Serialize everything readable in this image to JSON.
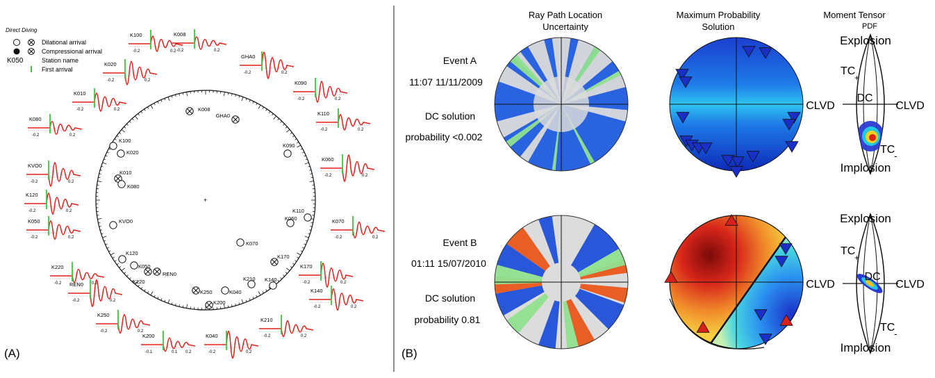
{
  "panel_a": {
    "label": "(A)",
    "legend": {
      "heading": "Direct Diving",
      "dilational": "Dilational arrival",
      "compressional": "Compressional arrival",
      "station_code": "K050",
      "station_name": "Station name",
      "first_arrival": "First arrival"
    },
    "stations": [
      {
        "name": "K008",
        "polarity": "compressional"
      },
      {
        "name": "GHA0",
        "polarity": "compressional"
      },
      {
        "name": "K090",
        "polarity": "dilational"
      },
      {
        "name": "K100",
        "polarity": "dilational"
      },
      {
        "name": "K020",
        "polarity": "dilational"
      },
      {
        "name": "K010",
        "polarity": "compressional"
      },
      {
        "name": "K080",
        "polarity": "dilational"
      },
      {
        "name": "K110",
        "polarity": "dilational"
      },
      {
        "name": "K060",
        "polarity": "dilational"
      },
      {
        "name": "KVO0",
        "polarity": "dilational"
      },
      {
        "name": "K070",
        "polarity": "dilational"
      },
      {
        "name": "K120",
        "polarity": "dilational"
      },
      {
        "name": "K050",
        "polarity": "dilational"
      },
      {
        "name": "REN0",
        "polarity": "compressional"
      },
      {
        "name": "K220",
        "polarity": "compressional"
      },
      {
        "name": "K170",
        "polarity": "compressional"
      },
      {
        "name": "K210",
        "polarity": "dilational"
      },
      {
        "name": "K140",
        "polarity": "dilational"
      },
      {
        "name": "K040",
        "polarity": "dilational"
      },
      {
        "name": "K250",
        "polarity": "compressional"
      },
      {
        "name": "K200",
        "polarity": "compressional"
      }
    ],
    "waveforms": [
      {
        "name": "K100",
        "ticks": [
          "-0.2",
          "0.2"
        ]
      },
      {
        "name": "K008",
        "ticks": [
          "-0.2",
          "0.2"
        ]
      },
      {
        "name": "GHA0",
        "ticks": [
          "-0.2",
          "0.2"
        ]
      },
      {
        "name": "K020",
        "ticks": [
          "-0.2",
          "0.2"
        ]
      },
      {
        "name": "K090",
        "ticks": [
          "-0.2",
          "0.2"
        ]
      },
      {
        "name": "K010",
        "ticks": [
          "-0.2",
          "0.2"
        ]
      },
      {
        "name": "K110",
        "ticks": [
          "-0.2",
          "0.2"
        ]
      },
      {
        "name": "K080",
        "ticks": [
          "-0.2",
          "0.2"
        ]
      },
      {
        "name": "K060",
        "ticks": [
          "-0.2",
          "0.2"
        ]
      },
      {
        "name": "KVO0",
        "ticks": [
          "-0.2",
          "0.2"
        ]
      },
      {
        "name": "K120",
        "ticks": [
          "-0.2",
          "0.2"
        ]
      },
      {
        "name": "K050",
        "ticks": [
          "-0.2",
          "0.2"
        ]
      },
      {
        "name": "K070",
        "ticks": [
          "-0.2",
          "0.2"
        ]
      },
      {
        "name": "K220",
        "ticks": [
          "-0.2",
          "0.2"
        ]
      },
      {
        "name": "REN0",
        "ticks": [
          "-0.2",
          "0.2"
        ]
      },
      {
        "name": "K170",
        "ticks": [
          "-0.2",
          "0.2"
        ]
      },
      {
        "name": "K140",
        "ticks": [
          "-0.2",
          "0.2"
        ]
      },
      {
        "name": "K250",
        "ticks": [
          "-0.2",
          "0.2"
        ]
      },
      {
        "name": "K210",
        "ticks": [
          "-0.2",
          "0.2"
        ]
      },
      {
        "name": "K200",
        "ticks": [
          "-0.1",
          "0.1",
          "0.2"
        ]
      },
      {
        "name": "K040",
        "ticks": [
          "-0.2",
          "0.2"
        ]
      }
    ]
  },
  "panel_b": {
    "label": "(B)",
    "col1_title_line1": "Ray Path Location",
    "col1_title_line2": "Uncertainty",
    "col2_title_line1": "Maximum Probability",
    "col2_title_line2": "Solution",
    "col3_title_line1": "Moment Tensor",
    "col3_title_line2": "PDF",
    "events": [
      {
        "name": "Event A",
        "datetime": "11:07 11/11/2009",
        "dc_line1": "DC solution",
        "dc_line2": "probability <0.002"
      },
      {
        "name": "Event B",
        "datetime": "01:11 15/07/2010",
        "dc_line1": "DC solution",
        "dc_line2": "probability 0.81"
      }
    ],
    "lune": {
      "top": "Explosion",
      "bottom": "Implosion",
      "left": "CLVD",
      "right": "CLVD",
      "center": "DC",
      "tc_plus": "TC",
      "plus": "+",
      "tc_minus": "TC",
      "minus": "-"
    }
  },
  "colors": {
    "trace": "#e0201a",
    "first_arrival": "#3cc43c",
    "blue": "#1f4fd8",
    "orange": "#e8561a",
    "green": "#8fe08f",
    "gray": "#dadada"
  }
}
